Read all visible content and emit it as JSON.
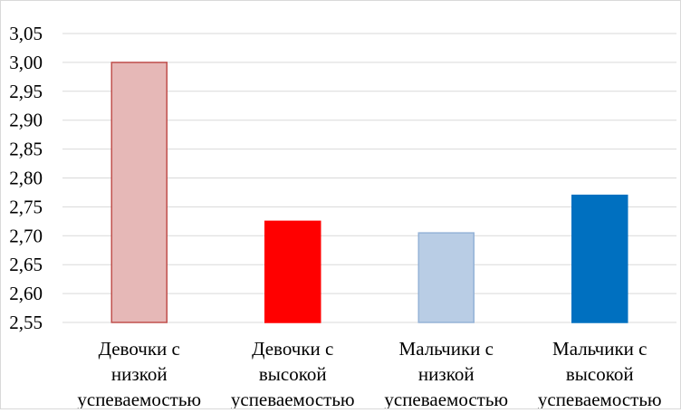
{
  "chart_data": {
    "type": "bar",
    "categories": [
      [
        "Девочки с",
        "низкой",
        "успеваемостью"
      ],
      [
        "Девочки с",
        "высокой",
        "успеваемостью"
      ],
      [
        "Мальчики  с",
        "низкой",
        "успеваемостью"
      ],
      [
        "Мальчики  с",
        "высокой",
        "успеваемостью"
      ]
    ],
    "values": [
      3.0,
      2.725,
      2.705,
      2.77
    ],
    "colors": [
      {
        "fill": "#e6b8b7",
        "stroke": "#c0504d"
      },
      {
        "fill": "#ff0000",
        "stroke": "#ff0000"
      },
      {
        "fill": "#b9cde5",
        "stroke": "#95b3d7"
      },
      {
        "fill": "#0070c0",
        "stroke": "#0070c0"
      }
    ],
    "ylim": [
      2.55,
      3.05
    ],
    "yticks": [
      "2,55",
      "2,60",
      "2,65",
      "2,70",
      "2,75",
      "2,80",
      "2,85",
      "2,90",
      "2,95",
      "3,00",
      "3,05"
    ],
    "ytick_values": [
      2.55,
      2.6,
      2.65,
      2.7,
      2.75,
      2.8,
      2.85,
      2.9,
      2.95,
      3.0,
      3.05
    ],
    "grid": true,
    "legend": "none",
    "title": "",
    "xlabel": "",
    "ylabel": ""
  }
}
